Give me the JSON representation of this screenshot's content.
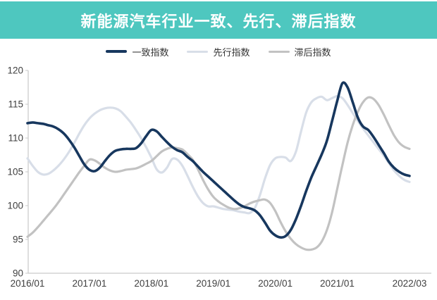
{
  "title": {
    "text": "新能源汽车行业一致、先行、滞后指数",
    "bg_color": "#4ec7bf",
    "text_color": "#ffffff"
  },
  "legend": [
    {
      "label": "一致指数",
      "color": "#17375e",
      "thickness": 4
    },
    {
      "label": "先行指数",
      "color": "#d8dee8",
      "thickness": 3
    },
    {
      "label": "滞后指数",
      "color": "#c2c2c2",
      "thickness": 3
    }
  ],
  "axes": {
    "line_color": "#c9c9c9",
    "label_color": "#3f3f3f"
  },
  "chart_data": {
    "type": "line",
    "title": "新能源汽车行业一致、先行、滞后指数",
    "xlabel": "",
    "ylabel": "",
    "x_unit": "month",
    "x_start": "2016/01",
    "x_end": "2022/03",
    "x_tick_labels": [
      "2016/01",
      "2017/01",
      "2018/01",
      "2019/01",
      "2020/01",
      "2021/01",
      "2022/03"
    ],
    "x_tick_month_index": [
      0,
      12,
      24,
      36,
      48,
      60,
      74
    ],
    "y_ticks": [
      90,
      95,
      100,
      105,
      110,
      115,
      120
    ],
    "ylim": [
      90,
      120
    ],
    "grid": false,
    "legend_position": "top",
    "series": [
      {
        "name": "一致指数",
        "color": "#17375e",
        "stroke_width": 3.6,
        "values": [
          112.2,
          112.3,
          112.2,
          112.1,
          111.9,
          111.7,
          111.3,
          110.7,
          109.8,
          108.7,
          107.4,
          106.1,
          105.3,
          105.1,
          105.6,
          106.6,
          107.5,
          108.1,
          108.3,
          108.4,
          108.4,
          108.5,
          109.2,
          110.3,
          111.2,
          111.0,
          110.2,
          109.4,
          108.7,
          108.2,
          107.9,
          107.2,
          106.6,
          105.8,
          105.0,
          104.3,
          103.6,
          102.9,
          102.2,
          101.5,
          100.8,
          100.2,
          99.8,
          99.6,
          99.3,
          98.6,
          97.5,
          96.3,
          95.6,
          95.3,
          95.5,
          96.4,
          98.0,
          100.0,
          102.2,
          104.2,
          105.9,
          107.6,
          109.6,
          112.5,
          115.5,
          118.1,
          117.5,
          115.3,
          113.0,
          111.7,
          111.2,
          110.2,
          109.0,
          107.8,
          106.5,
          105.6,
          105.0,
          104.6,
          104.4
        ]
      },
      {
        "name": "先行指数",
        "color": "#d8dee8",
        "stroke_width": 3.2,
        "values": [
          107.0,
          105.9,
          105.0,
          104.6,
          104.7,
          105.2,
          105.9,
          106.8,
          107.9,
          109.2,
          110.6,
          111.9,
          112.9,
          113.6,
          114.1,
          114.4,
          114.5,
          114.4,
          114.0,
          113.2,
          112.3,
          111.2,
          110.0,
          108.6,
          107.1,
          105.4,
          104.9,
          105.6,
          106.9,
          106.8,
          105.9,
          104.4,
          102.8,
          101.4,
          100.4,
          99.9,
          99.9,
          99.7,
          99.5,
          99.4,
          99.3,
          99.1,
          99.0,
          98.9,
          99.6,
          101.5,
          104.0,
          106.0,
          107.0,
          107.2,
          107.1,
          106.6,
          108.0,
          111.0,
          113.8,
          115.3,
          115.9,
          116.1,
          115.6,
          115.9,
          116.2,
          115.9,
          114.9,
          113.7,
          112.5,
          111.4,
          110.4,
          109.4,
          108.4,
          107.4,
          106.3,
          105.2,
          104.4,
          103.8,
          103.5
        ]
      },
      {
        "name": "滞后指数",
        "color": "#c2c2c2",
        "stroke_width": 3.2,
        "values": [
          95.4,
          96.0,
          96.8,
          97.7,
          98.6,
          99.5,
          100.5,
          101.6,
          102.7,
          103.8,
          104.9,
          105.9,
          106.8,
          106.7,
          106.2,
          105.6,
          105.2,
          105.0,
          105.1,
          105.3,
          105.4,
          105.5,
          105.8,
          106.2,
          106.6,
          107.3,
          108.0,
          108.4,
          108.6,
          108.5,
          108.3,
          107.6,
          106.8,
          105.4,
          103.8,
          102.4,
          101.3,
          100.6,
          100.1,
          99.7,
          99.5,
          99.6,
          99.9,
          100.3,
          100.6,
          100.8,
          100.9,
          100.4,
          99.2,
          97.6,
          96.2,
          95.1,
          94.3,
          93.8,
          93.5,
          93.5,
          93.8,
          94.7,
          96.4,
          99.0,
          102.5,
          106.0,
          109.3,
          111.9,
          113.9,
          115.3,
          116.0,
          115.8,
          114.9,
          113.5,
          111.9,
          110.4,
          109.3,
          108.7,
          108.4
        ]
      }
    ]
  }
}
